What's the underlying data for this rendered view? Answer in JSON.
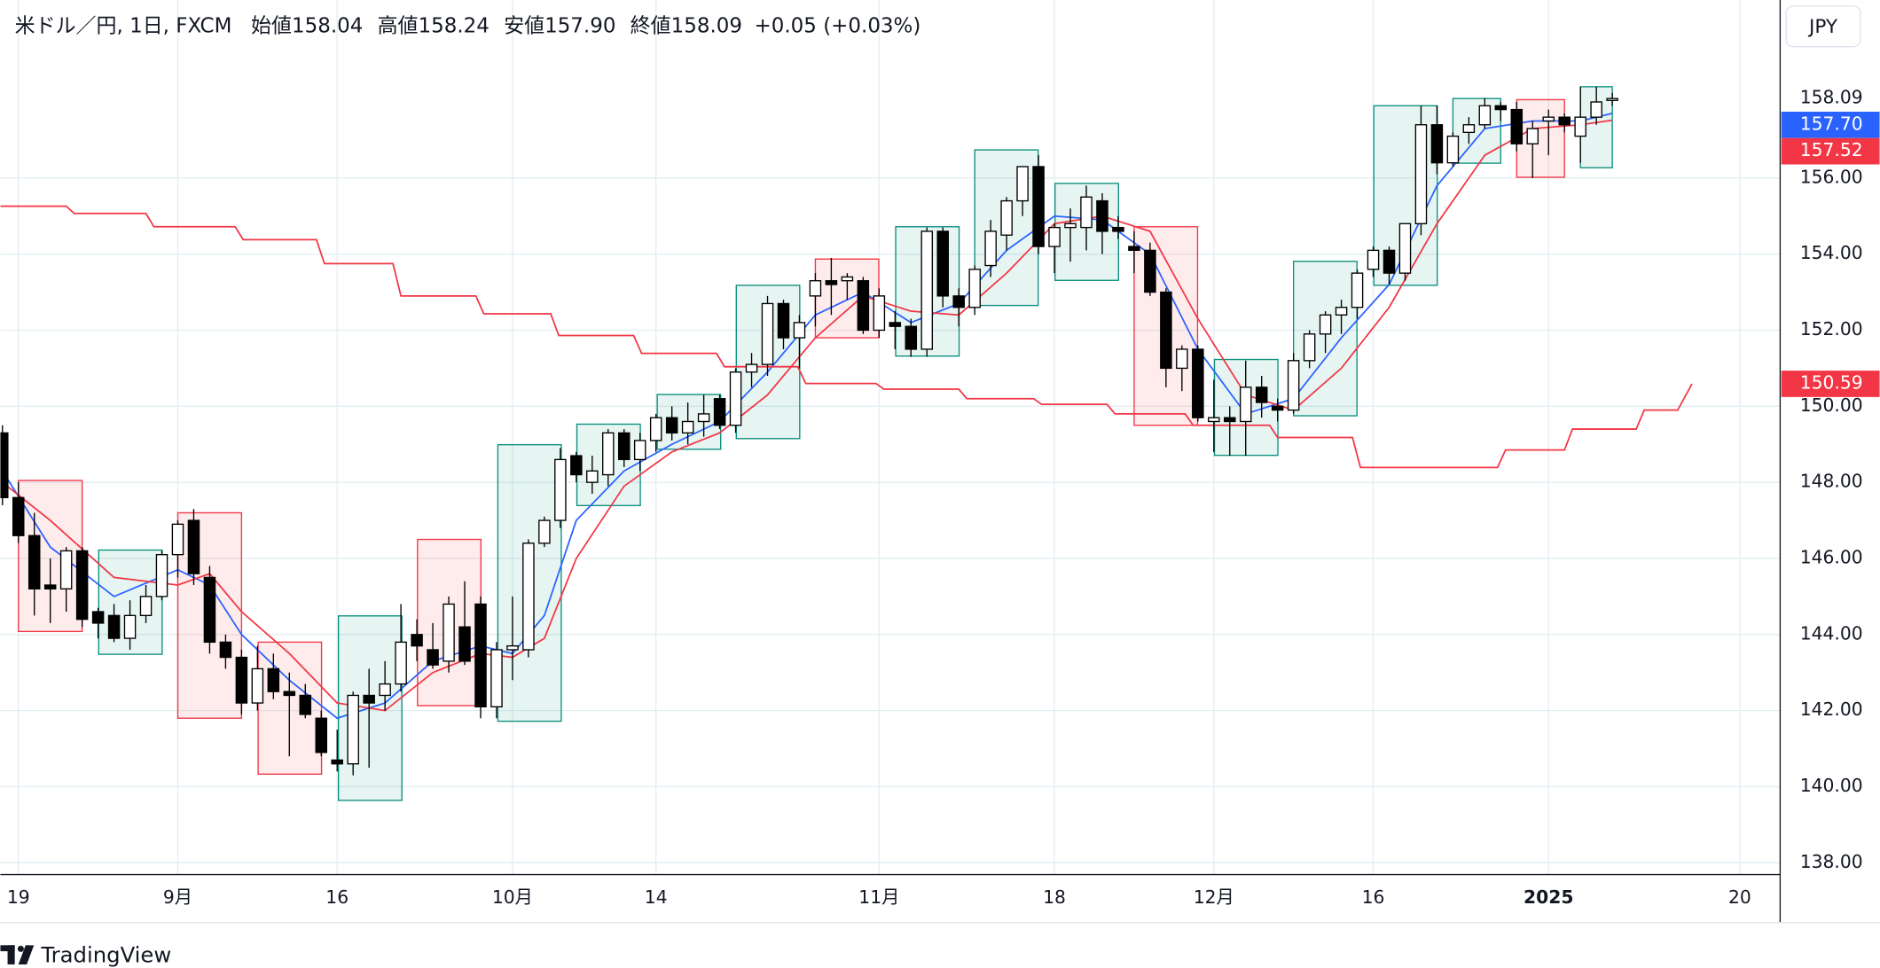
{
  "chart_data": {
    "type": "candlestick",
    "title": "米ドル／円, 1日, FXCM",
    "ohlc_text": [
      [
        "始値",
        "158.04"
      ],
      [
        "高値",
        "158.24"
      ],
      [
        "安値",
        "157.90"
      ],
      [
        "終値",
        "158.09"
      ]
    ],
    "change": "+0.05 (+0.03%)",
    "currency": "JPY",
    "brand": "TradingView",
    "xlim": [
      -1.13,
      110.53
    ],
    "ylim": [
      137.69,
      160.68
    ],
    "yticks": [
      {
        "value": 138,
        "label": "138.00"
      },
      {
        "value": 140,
        "label": "140.00"
      },
      {
        "value": 142,
        "label": "142.00"
      },
      {
        "value": 144,
        "label": "144.00"
      },
      {
        "value": 146,
        "label": "146.00"
      },
      {
        "value": 148,
        "label": "148.00"
      },
      {
        "value": 150,
        "label": "150.00"
      },
      {
        "value": 152,
        "label": "152.00"
      },
      {
        "value": 154,
        "label": "154.00"
      },
      {
        "value": 156,
        "label": "156.00"
      }
    ],
    "xticks": [
      {
        "value": 0,
        "label": "19"
      },
      {
        "value": 10,
        "label": "9月"
      },
      {
        "value": 20,
        "label": "16"
      },
      {
        "value": 31,
        "label": "10月"
      },
      {
        "value": 40,
        "label": "14"
      },
      {
        "value": 54,
        "label": "11月"
      },
      {
        "value": 65,
        "label": "18"
      },
      {
        "value": 75,
        "label": "12月"
      },
      {
        "value": 85,
        "label": "16"
      },
      {
        "value": 96,
        "label": "2025",
        "bold": true
      },
      {
        "value": 108,
        "label": "20"
      }
    ],
    "grid": true,
    "up_color": "#ffffff",
    "down_color": "#000000",
    "candles": {
      "x": [
        -1,
        0,
        1,
        2,
        3,
        4,
        5,
        6,
        7,
        8,
        9,
        10,
        11,
        12,
        13,
        14,
        15,
        16,
        17,
        18,
        19,
        20,
        21,
        22,
        23,
        24,
        25,
        26,
        27,
        28,
        29,
        30,
        31,
        32,
        33,
        34,
        35,
        36,
        37,
        38,
        39,
        40,
        41,
        42,
        43,
        44,
        45,
        46,
        47,
        48,
        49,
        50,
        51,
        52,
        53,
        54,
        55,
        56,
        57,
        58,
        59,
        60,
        61,
        62,
        63,
        64,
        65,
        66,
        67,
        68,
        69,
        70,
        71,
        72,
        73,
        74,
        75,
        76,
        77,
        78,
        79,
        80,
        81,
        82,
        83,
        84,
        85,
        86,
        87,
        88,
        89,
        90,
        91,
        92,
        93,
        94,
        95,
        96,
        97,
        98,
        99,
        100
      ],
      "open": [
        149.3,
        147.6,
        146.6,
        145.3,
        145.2,
        146.2,
        144.6,
        144.5,
        143.9,
        144.5,
        145.0,
        146.1,
        147.0,
        145.5,
        143.8,
        143.4,
        142.2,
        143.1,
        142.5,
        142.4,
        141.8,
        140.7,
        140.6,
        142.4,
        142.4,
        142.7,
        144.0,
        143.6,
        143.3,
        144.2,
        144.8,
        142.1,
        143.6,
        143.6,
        146.4,
        147.0,
        148.7,
        148.0,
        148.2,
        149.3,
        148.6,
        149.1,
        149.7,
        149.3,
        149.6,
        150.2,
        149.5,
        150.9,
        151.1,
        152.7,
        151.8,
        152.9,
        153.3,
        153.3,
        153.3,
        152.0,
        152.2,
        152.1,
        151.5,
        154.6,
        152.9,
        152.6,
        153.7,
        154.5,
        155.4,
        156.3,
        154.2,
        154.7,
        154.7,
        155.4,
        154.7,
        154.2,
        154.1,
        153.0,
        151.0,
        151.5,
        149.6,
        149.7,
        149.6,
        150.5,
        150.0,
        149.9,
        151.2,
        151.9,
        152.4,
        152.6,
        153.6,
        154.1,
        153.5,
        154.8,
        157.4,
        156.4,
        157.2,
        157.4,
        157.9,
        157.8,
        156.9,
        157.5,
        157.6,
        157.1,
        157.6,
        158.04
      ],
      "high": [
        149.5,
        148.0,
        147.2,
        146.0,
        146.3,
        146.3,
        144.7,
        144.8,
        144.9,
        145.3,
        146.2,
        147.0,
        147.3,
        145.8,
        144.0,
        143.6,
        143.7,
        143.5,
        143.0,
        142.7,
        142.0,
        141.5,
        142.5,
        143.1,
        143.3,
        144.8,
        144.4,
        144.3,
        145.0,
        145.4,
        145.0,
        143.8,
        145.0,
        146.5,
        147.1,
        148.9,
        148.8,
        148.7,
        149.4,
        149.4,
        149.3,
        149.8,
        150.0,
        150.1,
        150.3,
        150.3,
        151.0,
        151.4,
        152.9,
        152.8,
        152.4,
        153.5,
        153.9,
        153.5,
        153.4,
        153.1,
        152.5,
        152.3,
        154.7,
        154.7,
        153.1,
        153.7,
        154.9,
        155.5,
        156.3,
        156.6,
        154.8,
        155.2,
        155.8,
        155.6,
        155.0,
        154.6,
        154.3,
        153.1,
        151.6,
        151.6,
        150.7,
        150.0,
        151.2,
        150.8,
        150.2,
        151.4,
        152.0,
        152.5,
        152.8,
        153.6,
        154.2,
        154.2,
        154.8,
        157.9,
        157.9,
        157.2,
        157.6,
        158.1,
        158.0,
        158.0,
        157.5,
        157.8,
        157.7,
        158.4,
        158.4,
        158.24
      ],
      "low": [
        147.4,
        146.4,
        144.5,
        144.3,
        144.6,
        144.2,
        143.9,
        143.8,
        143.6,
        144.3,
        144.9,
        145.5,
        145.3,
        143.5,
        143.1,
        141.9,
        142.0,
        142.3,
        140.8,
        141.8,
        140.8,
        140.4,
        140.3,
        140.5,
        142.0,
        142.5,
        143.3,
        143.1,
        143.0,
        143.2,
        141.8,
        141.8,
        142.8,
        143.4,
        146.3,
        146.8,
        148.0,
        147.7,
        147.9,
        148.4,
        148.3,
        148.8,
        149.1,
        149.0,
        149.2,
        149.4,
        149.3,
        150.5,
        150.8,
        151.5,
        151.0,
        152.1,
        152.4,
        152.8,
        151.9,
        151.8,
        151.5,
        151.3,
        151.3,
        152.6,
        152.1,
        152.4,
        153.4,
        154.1,
        155.0,
        154.0,
        153.5,
        153.8,
        154.1,
        154.0,
        154.4,
        153.5,
        152.9,
        150.5,
        150.4,
        149.6,
        148.8,
        148.7,
        148.7,
        149.7,
        149.6,
        149.8,
        151.0,
        151.4,
        151.9,
        152.3,
        153.4,
        153.2,
        153.3,
        154.5,
        156.1,
        156.3,
        156.9,
        157.3,
        157.5,
        156.7,
        156.0,
        156.6,
        157.2,
        156.4,
        157.4,
        157.9
      ],
      "close": [
        147.6,
        146.6,
        145.2,
        145.2,
        146.2,
        144.4,
        144.3,
        143.9,
        144.5,
        145.0,
        146.1,
        146.9,
        145.6,
        143.8,
        143.4,
        142.2,
        143.1,
        142.5,
        142.4,
        141.9,
        140.9,
        140.6,
        142.4,
        142.2,
        142.7,
        143.8,
        143.7,
        143.2,
        144.8,
        143.3,
        142.1,
        143.6,
        143.7,
        146.4,
        147.0,
        148.6,
        148.2,
        148.3,
        149.3,
        148.6,
        149.1,
        149.7,
        149.3,
        149.6,
        149.8,
        149.5,
        150.9,
        151.1,
        152.7,
        151.8,
        152.2,
        153.3,
        153.2,
        153.4,
        152.0,
        152.9,
        152.1,
        151.5,
        154.6,
        152.9,
        152.6,
        153.6,
        154.6,
        155.4,
        156.3,
        154.2,
        154.7,
        154.8,
        155.5,
        154.6,
        154.6,
        154.1,
        153.0,
        151.0,
        151.5,
        149.7,
        149.7,
        149.6,
        150.5,
        150.1,
        149.9,
        151.2,
        151.9,
        152.4,
        152.6,
        153.5,
        154.1,
        153.5,
        154.8,
        157.4,
        156.4,
        157.1,
        157.4,
        157.9,
        157.8,
        156.9,
        157.3,
        157.6,
        157.4,
        157.6,
        158.0,
        158.09
      ]
    },
    "series": [
      {
        "color": "#2962ff",
        "x": [
          -1,
          2,
          6,
          10,
          12,
          14,
          17,
          20,
          23,
          26,
          29,
          31,
          33,
          35,
          38,
          41,
          44,
          47,
          50,
          53,
          56,
          59,
          62,
          65,
          68,
          71,
          74,
          77,
          80,
          83,
          86,
          89,
          92,
          95,
          98,
          100
        ],
        "values": [
          148.3,
          146.3,
          145.0,
          145.7,
          145.3,
          144.0,
          142.8,
          141.8,
          142.2,
          143.3,
          143.7,
          143.5,
          144.5,
          147.0,
          148.3,
          149.0,
          149.6,
          150.9,
          152.4,
          153.0,
          152.2,
          152.7,
          154.1,
          155.0,
          154.9,
          154.0,
          151.5,
          149.8,
          150.2,
          151.8,
          153.2,
          155.8,
          157.3,
          157.5,
          157.5,
          157.7
        ]
      },
      {
        "color": "#f23645",
        "x": [
          -1,
          2,
          6,
          10,
          12,
          14,
          17,
          20,
          23,
          26,
          29,
          31,
          33,
          35,
          38,
          41,
          44,
          47,
          50,
          53,
          56,
          59,
          62,
          65,
          68,
          71,
          74,
          77,
          80,
          83,
          86,
          89,
          92,
          95,
          98,
          100
        ],
        "values": [
          148.0,
          147.0,
          145.5,
          145.3,
          145.6,
          144.6,
          143.5,
          142.2,
          142.0,
          143.0,
          143.5,
          143.4,
          143.9,
          146.0,
          147.9,
          148.8,
          149.3,
          150.3,
          151.8,
          152.9,
          152.5,
          152.4,
          153.5,
          154.8,
          155.0,
          154.6,
          152.3,
          150.3,
          149.9,
          151.0,
          152.6,
          154.8,
          156.6,
          157.3,
          157.4,
          157.52
        ]
      },
      {
        "color": "#f23645",
        "x": [
          -1.13,
          3.0,
          3.5,
          8.0,
          8.5,
          13.6,
          14.1,
          18.7,
          19.2,
          23.5,
          24.0,
          28.7,
          29.2,
          33.4,
          33.9,
          38.6,
          39.1,
          43.8,
          44.3,
          48.9,
          49.4,
          53.8,
          54.3,
          59.0,
          59.5,
          63.7,
          64.2,
          68.3,
          68.8,
          73.2,
          73.7,
          78.5,
          79.0,
          83.7,
          84.2,
          92.8,
          93.3,
          97.0,
          97.5,
          101.5,
          102.0,
          104.1,
          105.0
        ],
        "values": [
          155.26,
          155.26,
          155.07,
          155.07,
          154.72,
          154.72,
          154.38,
          154.38,
          153.75,
          153.75,
          152.9,
          152.9,
          152.43,
          152.43,
          151.86,
          151.86,
          151.39,
          151.39,
          151.04,
          151.04,
          150.6,
          150.6,
          150.45,
          150.45,
          150.2,
          150.2,
          150.05,
          150.05,
          149.8,
          149.8,
          149.5,
          149.5,
          149.18,
          149.18,
          148.39,
          148.39,
          148.85,
          148.85,
          149.4,
          149.4,
          149.9,
          149.9,
          150.59
        ]
      }
    ],
    "boxes": [
      {
        "x": [
          0,
          4
        ],
        "range": [
          148.05,
          144.08
        ],
        "color": "#f23645"
      },
      {
        "x": [
          5.04,
          9.02
        ],
        "range": [
          146.22,
          143.48
        ],
        "color": "#0b8f7e"
      },
      {
        "x": [
          10,
          14
        ],
        "range": [
          147.2,
          141.8
        ],
        "color": "#f23645"
      },
      {
        "x": [
          15.04,
          19.02
        ],
        "range": [
          143.8,
          140.33
        ],
        "color": "#f23645"
      },
      {
        "x": [
          20.08,
          24.06
        ],
        "range": [
          144.49,
          139.64
        ],
        "color": "#0b8f7e"
      },
      {
        "x": [
          25.04,
          29.02
        ],
        "range": [
          146.5,
          142.13
        ],
        "color": "#f23645"
      },
      {
        "x": [
          30.08,
          34.06
        ],
        "range": [
          148.99,
          141.72
        ],
        "color": "#0b8f7e"
      },
      {
        "x": [
          35.04,
          39.02
        ],
        "range": [
          149.53,
          147.39
        ],
        "color": "#0b8f7e"
      },
      {
        "x": [
          40.08,
          44.06
        ],
        "range": [
          150.31,
          148.87
        ],
        "color": "#0b8f7e"
      },
      {
        "x": [
          45.04,
          49.02
        ],
        "range": [
          153.18,
          149.15
        ],
        "color": "#0b8f7e"
      },
      {
        "x": [
          50,
          53.98
        ],
        "range": [
          153.87,
          151.8
        ],
        "color": "#f23645"
      },
      {
        "x": [
          55.04,
          59.02
        ],
        "range": [
          154.72,
          151.32
        ],
        "color": "#0b8f7e"
      },
      {
        "x": [
          60,
          63.98
        ],
        "range": [
          156.74,
          152.65
        ],
        "color": "#0b8f7e"
      },
      {
        "x": [
          65.04,
          69.02
        ],
        "range": [
          155.86,
          153.31
        ],
        "color": "#0b8f7e"
      },
      {
        "x": [
          70,
          73.98
        ],
        "range": [
          154.72,
          149.5
        ],
        "color": "#f23645"
      },
      {
        "x": [
          75.04,
          79.02
        ],
        "range": [
          151.23,
          148.71
        ],
        "color": "#0b8f7e"
      },
      {
        "x": [
          80,
          83.98
        ],
        "range": [
          153.81,
          149.75
        ],
        "color": "#0b8f7e"
      },
      {
        "x": [
          85.04,
          89.02
        ],
        "range": [
          157.9,
          153.18
        ],
        "color": "#0b8f7e"
      },
      {
        "x": [
          90,
          93
        ],
        "range": [
          158.09,
          156.39
        ],
        "color": "#0b8f7e"
      },
      {
        "x": [
          94,
          97
        ],
        "range": [
          158.06,
          156.02
        ],
        "color": "#f23645"
      },
      {
        "x": [
          98,
          100
        ],
        "range": [
          158.4,
          156.27
        ],
        "color": "#0b8f7e"
      }
    ],
    "price_labels": [
      {
        "value": 158.09,
        "label": "158.09",
        "color": "#ffffff"
      },
      {
        "value": 157.7,
        "label": "157.70",
        "color": "#2962ff"
      },
      {
        "value": 157.52,
        "label": "157.52",
        "color": "#f23645"
      },
      {
        "value": 150.59,
        "label": "150.59",
        "color": "#f23645"
      }
    ]
  }
}
